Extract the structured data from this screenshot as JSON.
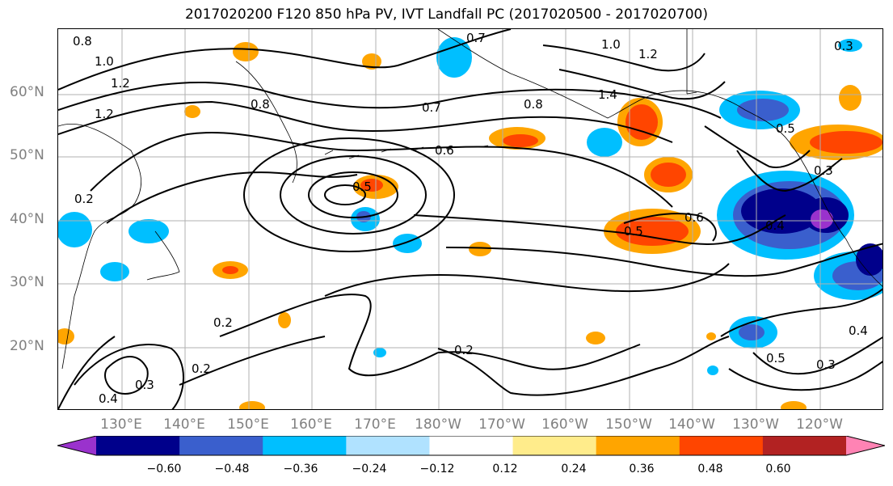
{
  "title": "2017020200 F120 850 hPa PV, IVT Landfall PC (2017020500 - 2017020700)",
  "lat_labels": [
    "60°N",
    "50°N",
    "40°N",
    "30°N",
    "20°N"
  ],
  "lon_labels": [
    "130°E",
    "140°E",
    "150°E",
    "160°E",
    "170°E",
    "180°W",
    "170°W",
    "160°W",
    "150°W",
    "140°W",
    "130°W",
    "120°W"
  ],
  "colorbar": {
    "colors": [
      "#9a32cd",
      "#00008b",
      "#3a5fcd",
      "#00bfff",
      "#b0e2ff",
      "#ffffff",
      "#ffec8b",
      "#ffa500",
      "#ff4500",
      "#b22222",
      "#ff83b4"
    ],
    "ticks": [
      "−0.60",
      "−0.48",
      "−0.36",
      "−0.24",
      "−0.12",
      "0.12",
      "0.24",
      "0.36",
      "0.48",
      "0.60"
    ]
  },
  "contour_labels": [
    "0.8",
    "1.0",
    "1.2",
    "1.2",
    "0.8",
    "0.7",
    "0.7",
    "1.0",
    "1.2",
    "0.8",
    "1.4",
    "0.6",
    "0.5",
    "0.5",
    "0.6",
    "0.5",
    "0.4",
    "0.3",
    "0.2",
    "0.2",
    "0.2",
    "0.3",
    "0.4",
    "0.4",
    "0.5",
    "0.3",
    "0.3",
    "0.2"
  ]
}
